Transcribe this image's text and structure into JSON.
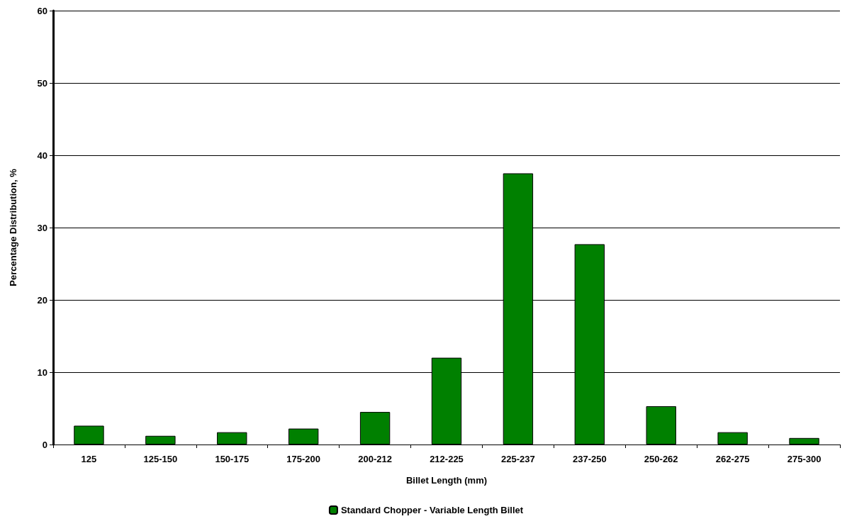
{
  "chart_data": {
    "type": "bar",
    "xlabel": "Billet Length (mm)",
    "ylabel": "Percentage Distribution, %",
    "categories": [
      "125",
      "125-150",
      "150-175",
      "175-200",
      "200-212",
      "212-225",
      "225-237",
      "237-250",
      "250-262",
      "262-275",
      "275-300"
    ],
    "series": [
      {
        "name": "Standard Chopper - Variable Length Billet",
        "color": "#008000",
        "values": [
          2.6,
          1.2,
          1.7,
          2.2,
          4.5,
          12.0,
          37.5,
          27.7,
          5.3,
          1.7,
          0.9
        ]
      }
    ],
    "ylim": [
      0,
      60
    ],
    "yticks": [
      0,
      10,
      20,
      30,
      40,
      50,
      60
    ],
    "grid": "y",
    "legend": "bottom"
  }
}
